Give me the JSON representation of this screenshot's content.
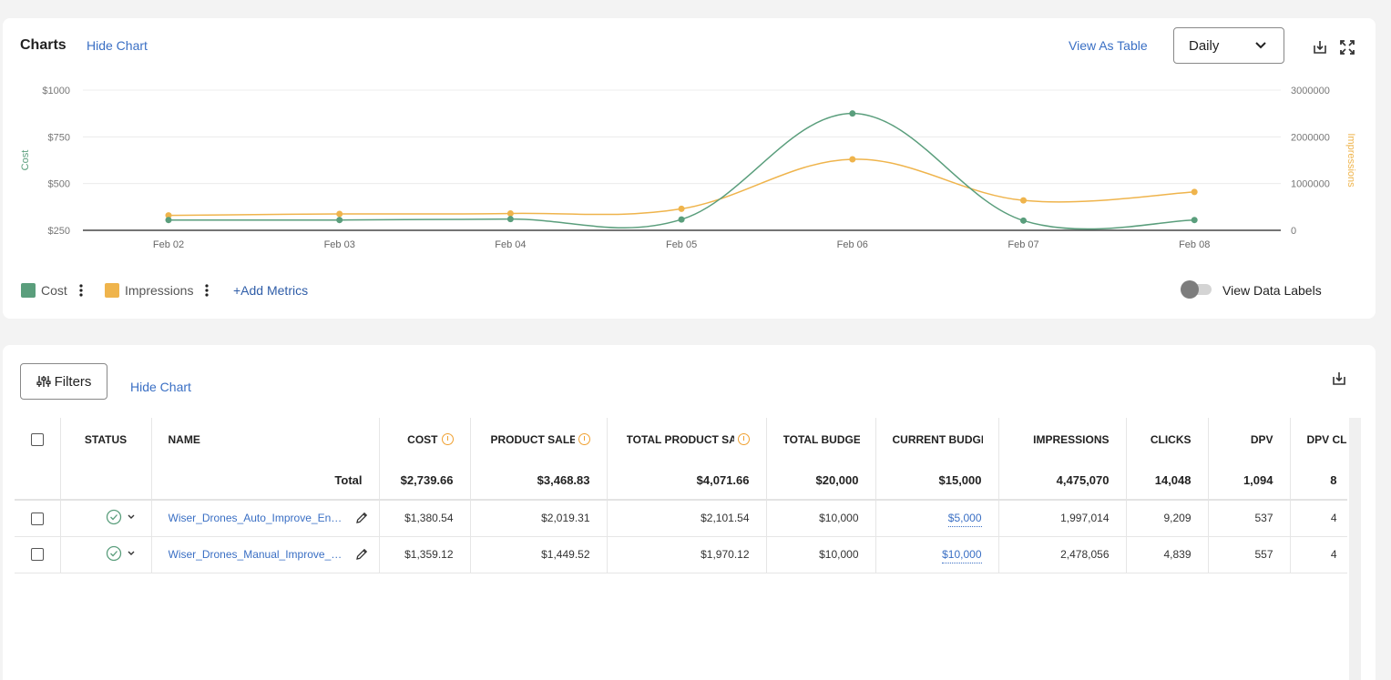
{
  "charts_panel": {
    "title": "Charts",
    "hide_chart": "Hide Chart",
    "view_as_table": "View As Table",
    "interval": "Daily",
    "add_metrics": "+Add Metrics",
    "view_data_labels": "View Data Labels",
    "data_labels_on": false
  },
  "chart_data": {
    "type": "line",
    "x": [
      "Feb 02",
      "Feb 03",
      "Feb 04",
      "Feb 05",
      "Feb 06",
      "Feb 07",
      "Feb 08"
    ],
    "series": [
      {
        "name": "Cost",
        "axis": "left",
        "color": "#5a9e7c",
        "values": [
          305,
          305,
          310,
          308,
          875,
          302,
          305
        ]
      },
      {
        "name": "Impressions",
        "axis": "right",
        "color": "#efb44c",
        "values": [
          320000,
          350000,
          360000,
          460000,
          1520000,
          640000,
          820000
        ]
      }
    ],
    "ylabel": "Cost",
    "y2label": "Impressions",
    "ylim": [
      250,
      1000
    ],
    "y_ticks": [
      "$1000",
      "$750",
      "$500",
      "$250"
    ],
    "y_tick_values": [
      1000,
      750,
      500,
      250
    ],
    "y2lim": [
      0,
      3000000
    ],
    "y2_ticks": [
      "3000000",
      "2000000",
      "1000000",
      "0"
    ],
    "y2_tick_values": [
      3000000,
      2000000,
      1000000,
      0
    ],
    "grid": true,
    "legend": "bottom-left"
  },
  "table_panel": {
    "filters": "Filters",
    "hide_chart": "Hide Chart",
    "headers": [
      "STATUS",
      "NAME",
      "COST",
      "PRODUCT SALES",
      "TOTAL PRODUCT SALES",
      "TOTAL BUDGET",
      "CURRENT BUDGET",
      "IMPRESSIONS",
      "CLICKS",
      "DPV",
      "DPV CLICKS"
    ],
    "total": {
      "label": "Total",
      "cost": "$2,739.66",
      "product_sales": "$3,468.83",
      "total_product_sales": "$4,071.66",
      "total_budget": "$20,000",
      "current_budget": "$15,000",
      "impressions": "4,475,070",
      "clicks": "14,048",
      "dpv": "1,094",
      "dpv_clicks": "8"
    },
    "rows": [
      {
        "name": "Wiser_Drones_Auto_Improve_Engagement",
        "cost": "$1,380.54",
        "product_sales": "$2,019.31",
        "total_product_sales": "$2,101.54",
        "total_budget": "$10,000",
        "current_budget": "$5,000",
        "impressions": "1,997,014",
        "clicks": "9,209",
        "dpv": "537",
        "dpv_clicks": "4"
      },
      {
        "name": "Wiser_Drones_Manual_Improve_Engagement",
        "cost": "$1,359.12",
        "product_sales": "$1,449.52",
        "total_product_sales": "$1,970.12",
        "total_budget": "$10,000",
        "current_budget": "$10,000",
        "impressions": "2,478,056",
        "clicks": "4,839",
        "dpv": "557",
        "dpv_clicks": "4"
      }
    ]
  },
  "icons": {
    "download": "download-icon",
    "expand": "expand-icon",
    "chevron": "chevron-down-icon",
    "kebab": "kebab-menu-icon",
    "filters": "sliders-icon",
    "status": "check-circle-icon",
    "edit": "pencil-icon",
    "info": "info-icon"
  },
  "colors": {
    "cost": "#5a9e7c",
    "impressions": "#efb44c",
    "link": "#3a6fc4"
  }
}
